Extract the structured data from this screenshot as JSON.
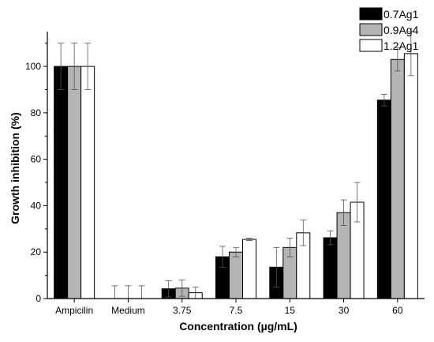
{
  "chart_data": {
    "type": "bar",
    "title": "",
    "xlabel": "Concentration (µg/mL)",
    "ylabel": "Growth inhibition (%)",
    "ylim": [
      0,
      115
    ],
    "yticks": [
      0,
      20,
      40,
      60,
      80,
      100
    ],
    "categories": [
      "Ampicilin",
      "Medium",
      "3.75",
      "7.5",
      "15",
      "30",
      "60"
    ],
    "legend_position": "top-right",
    "grid": false,
    "error_bars": true,
    "series": [
      {
        "name": "0.7Ag1",
        "color": "#000000",
        "values": [
          100,
          0,
          4.2,
          18,
          13.5,
          26.2,
          85.5
        ],
        "errors": [
          10,
          5.5,
          3.5,
          4.5,
          8.5,
          3,
          2.5
        ]
      },
      {
        "name": "0.9Ag4",
        "color": "#b4b4b4",
        "values": [
          100,
          0,
          4.5,
          20,
          22,
          37,
          103
        ],
        "errors": [
          10,
          5.5,
          3.5,
          2,
          4,
          5.5,
          5
        ]
      },
      {
        "name": "1.2Ag1",
        "color": "#ffffff",
        "values": [
          100,
          0,
          2.5,
          25.5,
          28.3,
          41.5,
          105.5
        ],
        "errors": [
          10,
          5.5,
          2.5,
          0.5,
          5.5,
          8.5,
          9.5
        ]
      }
    ]
  }
}
